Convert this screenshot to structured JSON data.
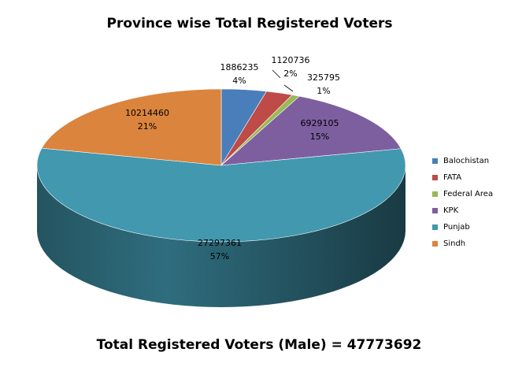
{
  "chart_data": {
    "type": "pie",
    "title": "Province wise Total Registered Voters",
    "footer": "Total Registered Voters (Male) = 47773692",
    "legend_position": "right",
    "slices": [
      {
        "label": "Balochistan",
        "value": 1886235,
        "percent_label": "4%",
        "color": "#4a7ebb"
      },
      {
        "label": "FATA",
        "value": 1120736,
        "percent_label": "2%",
        "color": "#be4b48"
      },
      {
        "label": "Federal Area",
        "value": 325795,
        "percent_label": "1%",
        "color": "#98b954"
      },
      {
        "label": "KPK",
        "value": 6929105,
        "percent_label": "15%",
        "color": "#7d5fa0"
      },
      {
        "label": "Punjab",
        "value": 27297361,
        "percent_label": "57%",
        "color": "#4198af"
      },
      {
        "label": "Sindh",
        "value": 10214460,
        "percent_label": "21%",
        "color": "#db843d"
      }
    ]
  }
}
